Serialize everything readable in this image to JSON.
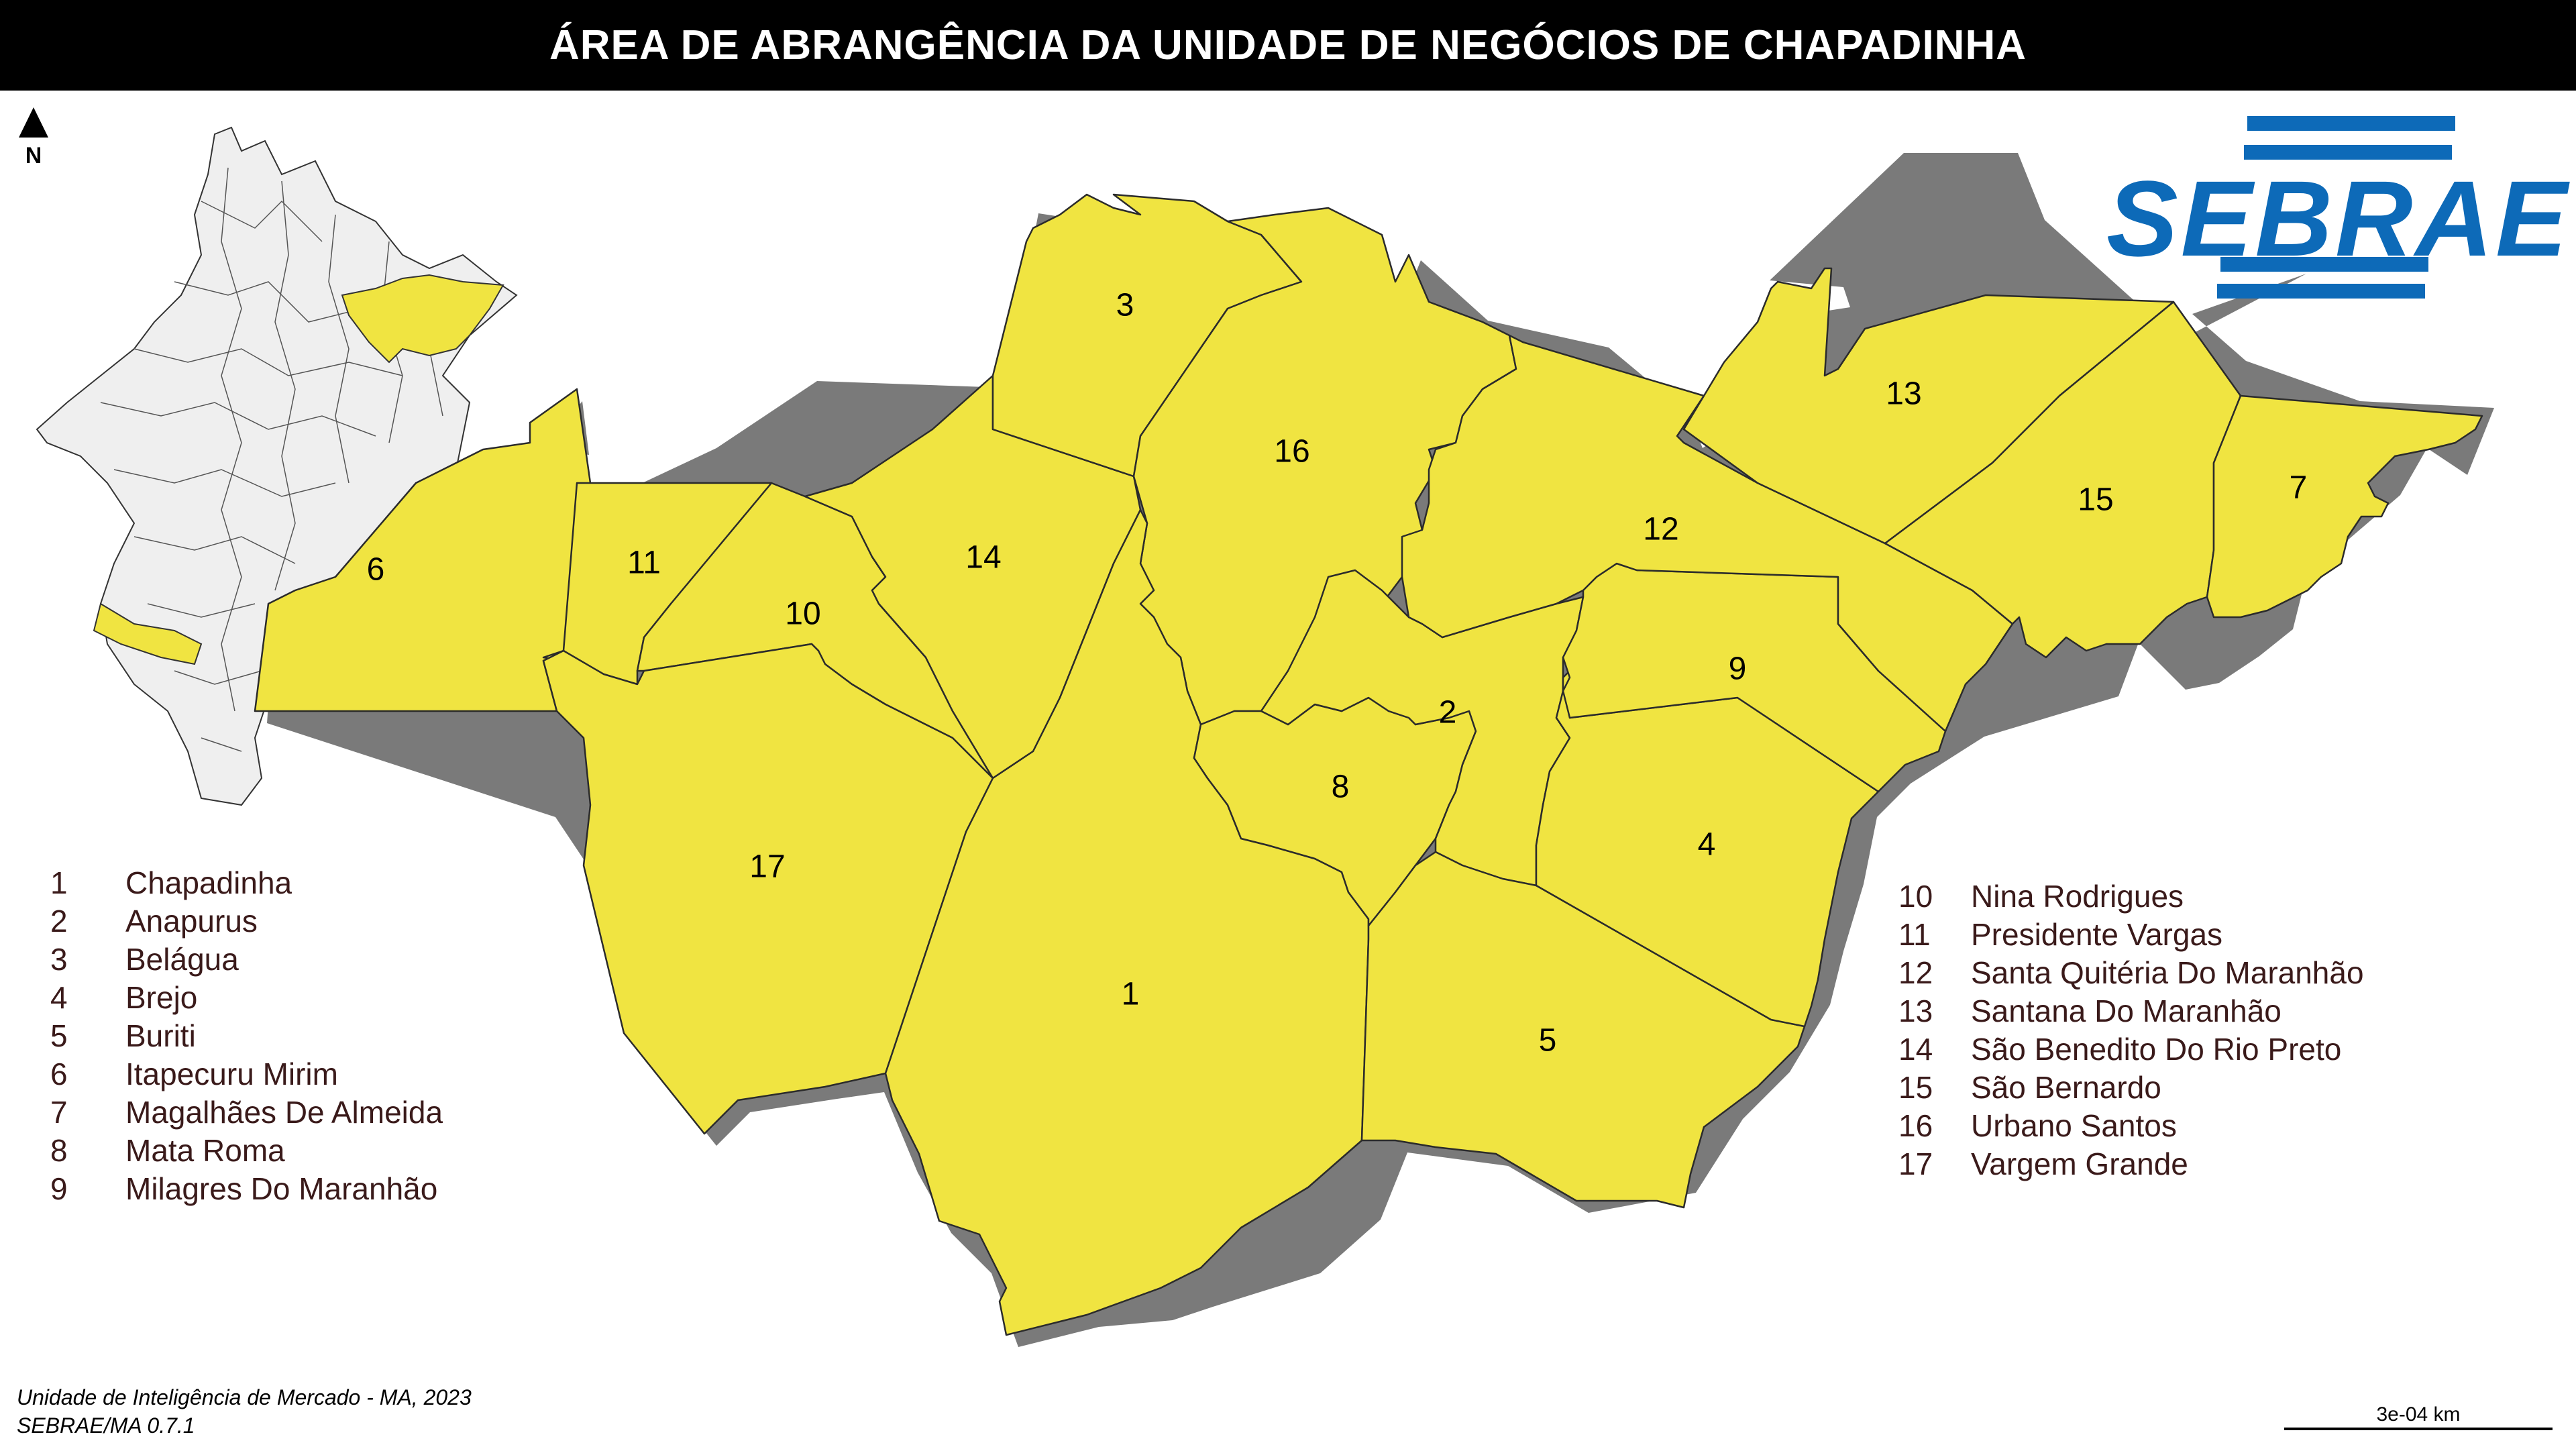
{
  "title": "ÁREA DE ABRANGÊNCIA DA UNIDADE DE NEGÓCIOS DE CHAPADINHA",
  "north_label": "N",
  "logo_text": "SEBRAE",
  "colors": {
    "region_fill": "#f0e441",
    "logo_blue": "#0d6ab8",
    "inset_fill": "#efefef"
  },
  "map_labels": [
    "1",
    "2",
    "3",
    "4",
    "5",
    "6",
    "7",
    "8",
    "9",
    "10",
    "11",
    "12",
    "13",
    "14",
    "15",
    "16",
    "17"
  ],
  "legend_left": [
    {
      "num": "1",
      "name": "Chapadinha"
    },
    {
      "num": "2",
      "name": "Anapurus"
    },
    {
      "num": "3",
      "name": "Belágua"
    },
    {
      "num": "4",
      "name": "Brejo"
    },
    {
      "num": "5",
      "name": "Buriti"
    },
    {
      "num": "6",
      "name": "Itapecuru Mirim"
    },
    {
      "num": "7",
      "name": "Magalhães De Almeida"
    },
    {
      "num": "8",
      "name": "Mata Roma"
    },
    {
      "num": "9",
      "name": "Milagres Do Maranhão"
    }
  ],
  "legend_right": [
    {
      "num": "10",
      "name": "Nina Rodrigues"
    },
    {
      "num": "11",
      "name": "Presidente Vargas"
    },
    {
      "num": "12",
      "name": "Santa Quitéria Do Maranhão"
    },
    {
      "num": "13",
      "name": "Santana Do Maranhão"
    },
    {
      "num": "14",
      "name": "São Benedito Do Rio Preto"
    },
    {
      "num": "15",
      "name": "São Bernardo"
    },
    {
      "num": "16",
      "name": "Urbano Santos"
    },
    {
      "num": "17",
      "name": "Vargem Grande"
    }
  ],
  "credits": [
    "Unidade de Inteligência de Mercado - MA, 2023",
    "SEBRAE/MA 0.7.1"
  ],
  "scale_label": "3e-04 km"
}
